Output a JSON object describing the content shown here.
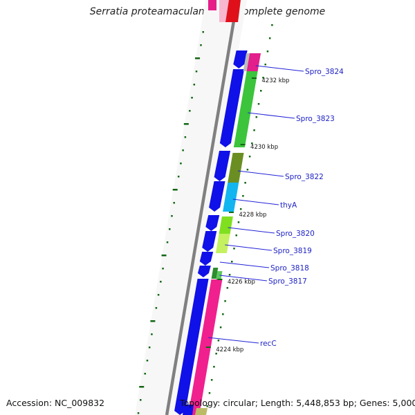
{
  "title": "Serratia proteamaculans 568, complete genome",
  "footer": {
    "accession": "Accession: NC_009832",
    "topology": "Topology: circular; Length: 5,448,853 bp; Genes: 5,000"
  },
  "colors": {
    "backbone": "#808080",
    "forward_cds": "#1010e8",
    "tick": "#116611",
    "label_line": "#2020d8",
    "gene_label_text": "#1e22c4"
  },
  "genes": [
    {
      "name": "Spro_3824",
      "color": "#e21f8a"
    },
    {
      "name": "Spro_3823",
      "color": "#3cc43c"
    },
    {
      "name": "Spro_3822",
      "color": "#6b8e23"
    },
    {
      "name": "thyA",
      "color": "#13b5f0"
    },
    {
      "name": "Spro_3820",
      "color": "#80e020"
    },
    {
      "name": "Spro_3819",
      "color": "#c5f060"
    },
    {
      "name": "Spro_3818",
      "color": "#2e8b2e"
    },
    {
      "name": "Spro_3817",
      "color": "#5cc85c"
    },
    {
      "name": "recC",
      "color": "#f0208e"
    }
  ],
  "position_labels": [
    "4232 kbp",
    "4230 kbp",
    "4228 kbp",
    "4226 kbp",
    "4224 kbp"
  ]
}
